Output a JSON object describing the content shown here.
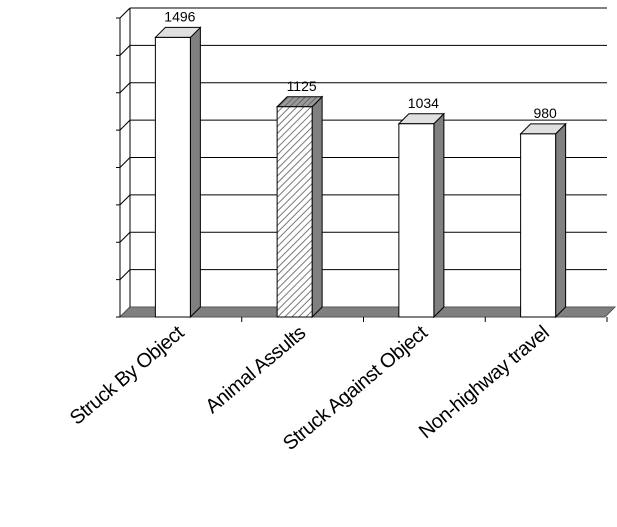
{
  "chart_data": {
    "type": "bar",
    "style": "3d-column",
    "categories": [
      "Struck By Object",
      "Animal Assults",
      "Struck Against Object",
      "Non-highway travel"
    ],
    "values": [
      1496,
      1125,
      1034,
      980
    ],
    "title": "",
    "xlabel": "",
    "ylabel": "",
    "ylim": [
      0,
      1600
    ],
    "grid": true,
    "legend": "none",
    "colors": {
      "bar_front": "#ffffff",
      "bar_side": "#808080",
      "bar_top": "#e0e0e0",
      "highlight_pattern": "diagonal-hatch",
      "floor": "#808080",
      "gridline": "#000000"
    },
    "highlighted_index": 1
  }
}
